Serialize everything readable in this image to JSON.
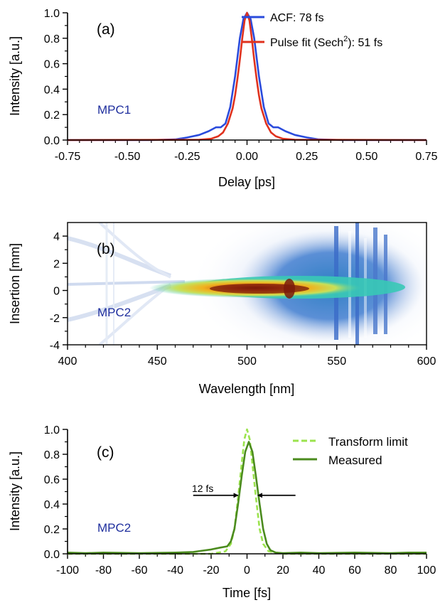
{
  "colors": {
    "acf": "#2a4bdc",
    "sech2": "#e0321e",
    "measured": "#4b8b1e",
    "transform_limit": "#9be34d",
    "mpc_label": "#1f2f9e",
    "axis": "#000000"
  },
  "chart_data": [
    {
      "type": "line",
      "panel_label": "(a)",
      "annotation": "MPC1",
      "xlabel": "Delay [ps]",
      "ylabel": "Intensity [a.u.]",
      "xlim": [
        -0.75,
        0.75
      ],
      "ylim": [
        0,
        1.0
      ],
      "xticks": [
        -0.75,
        -0.5,
        -0.25,
        0.0,
        0.25,
        0.5,
        0.75
      ],
      "xtick_labels": [
        "-0.75",
        "-0.50",
        "-0.25",
        "0.00",
        "0.25",
        "0.50",
        "0.75"
      ],
      "yticks": [
        0.0,
        0.2,
        0.4,
        0.6,
        0.8,
        1.0
      ],
      "ytick_labels": [
        "0.0",
        "0.2",
        "0.4",
        "0.6",
        "0.8",
        "1.0"
      ],
      "legend_position": "top-right",
      "series": [
        {
          "name": "ACF: 78 fs",
          "color_key": "acf",
          "x": [
            -0.75,
            -0.4,
            -0.3,
            -0.25,
            -0.2,
            -0.16,
            -0.13,
            -0.11,
            -0.09,
            -0.07,
            -0.05,
            -0.03,
            -0.015,
            0,
            0.015,
            0.03,
            0.05,
            0.07,
            0.09,
            0.11,
            0.13,
            0.16,
            0.2,
            0.25,
            0.3,
            0.4,
            0.75
          ],
          "y": [
            0,
            0,
            0.005,
            0.02,
            0.04,
            0.07,
            0.1,
            0.1,
            0.13,
            0.26,
            0.5,
            0.8,
            0.95,
            1.0,
            0.95,
            0.8,
            0.5,
            0.26,
            0.13,
            0.1,
            0.1,
            0.07,
            0.04,
            0.02,
            0.005,
            0,
            0
          ]
        },
        {
          "name": "Pulse fit (Sech",
          "name_sup": "2",
          "name_suffix": "): 51 fs",
          "color_key": "sech2",
          "x": [
            -0.75,
            -0.2,
            -0.15,
            -0.12,
            -0.1,
            -0.08,
            -0.06,
            -0.05,
            -0.04,
            -0.03,
            -0.02,
            -0.01,
            0,
            0.01,
            0.02,
            0.03,
            0.04,
            0.05,
            0.06,
            0.08,
            0.1,
            0.12,
            0.15,
            0.2,
            0.75
          ],
          "y": [
            0,
            0.002,
            0.01,
            0.03,
            0.06,
            0.13,
            0.25,
            0.35,
            0.48,
            0.63,
            0.8,
            0.94,
            1.0,
            0.94,
            0.8,
            0.63,
            0.48,
            0.35,
            0.25,
            0.13,
            0.06,
            0.03,
            0.01,
            0.002,
            0
          ]
        }
      ]
    },
    {
      "type": "heatmap",
      "panel_label": "(b)",
      "annotation": "MPC2",
      "xlabel": "Wavelength [nm]",
      "ylabel": "Insertion [mm]",
      "xlim": [
        400,
        600
      ],
      "ylim": [
        -4,
        5
      ],
      "xticks": [
        400,
        450,
        500,
        550,
        600
      ],
      "xtick_labels": [
        "400",
        "450",
        "500",
        "550",
        "600"
      ],
      "yticks": [
        -4,
        -2,
        0,
        2,
        4
      ],
      "ytick_labels": [
        "-4",
        "-2",
        "0",
        "2",
        "4"
      ],
      "colormap": [
        "#ffffff",
        "#c5d4ee",
        "#5b8fd6",
        "#2f7fc4",
        "#39c9b6",
        "#c7e05a",
        "#f0b21e",
        "#d2521a",
        "#7a1a0a"
      ],
      "features": {
        "peak_wavelengths_nm": [
          515,
          524
        ],
        "peak_insertion_mm": 0,
        "spectral_extent_nm": [
          455,
          575
        ]
      }
    },
    {
      "type": "line",
      "panel_label": "(c)",
      "annotation": "MPC2",
      "xlabel": "Time [fs]",
      "ylabel": "Intensity [a.u.]",
      "xlim": [
        -100,
        100
      ],
      "ylim": [
        0,
        1.0
      ],
      "xticks": [
        -100,
        -80,
        -60,
        -40,
        -20,
        0,
        20,
        40,
        60,
        80,
        100
      ],
      "xtick_labels": [
        "-100",
        "-80",
        "-60",
        "-40",
        "-20",
        "0",
        "20",
        "40",
        "60",
        "80",
        "100"
      ],
      "yticks": [
        0.0,
        0.2,
        0.4,
        0.6,
        0.8,
        1.0
      ],
      "ytick_labels": [
        "0.0",
        "0.2",
        "0.4",
        "0.6",
        "0.8",
        "1.0"
      ],
      "legend_position": "top-right",
      "fwhm_annotation": "12 fs",
      "fwhm_arrows_y": 0.47,
      "fwhm_arrow_tips_x": [
        -5,
        6
      ],
      "fwhm_arrow_tails_x": [
        -30,
        27
      ],
      "series": [
        {
          "name": "Transform limit",
          "color_key": "transform_limit",
          "dashed": true,
          "x": [
            -100,
            -20,
            -12,
            -9,
            -7,
            -5,
            -3,
            -1.5,
            0,
            1.5,
            3,
            5,
            7,
            9,
            12,
            20,
            100
          ],
          "y": [
            0,
            0,
            0.02,
            0.08,
            0.2,
            0.45,
            0.72,
            0.92,
            1.0,
            0.92,
            0.72,
            0.45,
            0.2,
            0.08,
            0.02,
            0,
            0
          ]
        },
        {
          "name": "Measured",
          "color_key": "measured",
          "dashed": false,
          "x": [
            -100,
            -90,
            -80,
            -60,
            -40,
            -30,
            -25,
            -20,
            -15,
            -11,
            -9,
            -7,
            -5,
            -3,
            -1,
            1,
            3,
            5,
            7,
            9,
            11,
            13,
            16,
            20,
            30,
            40,
            60,
            80,
            90,
            100
          ],
          "y": [
            0.01,
            0.005,
            0.01,
            0.005,
            0.01,
            0.015,
            0.025,
            0.035,
            0.05,
            0.06,
            0.1,
            0.2,
            0.4,
            0.62,
            0.82,
            0.9,
            0.82,
            0.62,
            0.4,
            0.2,
            0.08,
            0.03,
            0.01,
            0.005,
            0.01,
            0.005,
            0.01,
            0.005,
            0.01,
            0.01
          ]
        }
      ]
    }
  ]
}
